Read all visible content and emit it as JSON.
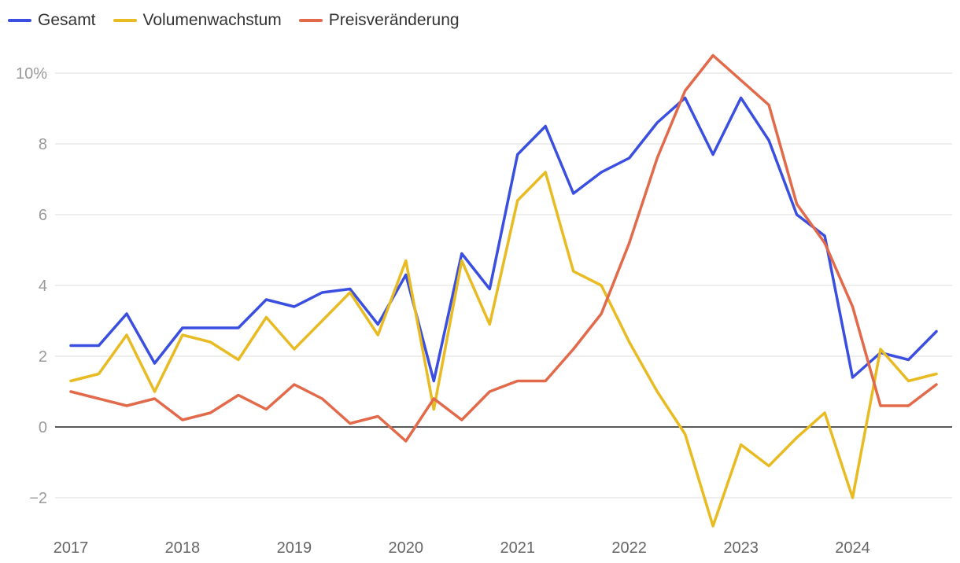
{
  "chart_data": {
    "type": "line",
    "title": "",
    "xlabel": "",
    "ylabel": "",
    "ylim": [
      -3,
      10.5
    ],
    "y_ticks": [
      -2,
      0,
      2,
      4,
      6,
      8,
      10
    ],
    "y_tick_labels": [
      "−2",
      "0",
      "2",
      "4",
      "6",
      "8",
      "10%"
    ],
    "x_range": [
      2017.0,
      2024.75
    ],
    "x_ticks": [
      2017,
      2018,
      2019,
      2020,
      2021,
      2022,
      2023,
      2024
    ],
    "x_tick_labels": [
      "2017",
      "2018",
      "2019",
      "2020",
      "2021",
      "2022",
      "2023",
      "2024"
    ],
    "x": [
      2017.0,
      2017.25,
      2017.5,
      2017.75,
      2018.0,
      2018.25,
      2018.5,
      2018.75,
      2019.0,
      2019.25,
      2019.5,
      2019.75,
      2020.0,
      2020.25,
      2020.5,
      2020.75,
      2021.0,
      2021.25,
      2021.5,
      2021.75,
      2022.0,
      2022.25,
      2022.5,
      2022.75,
      2023.0,
      2023.25,
      2023.5,
      2023.75,
      2024.0,
      2024.25,
      2024.5,
      2024.75
    ],
    "series": [
      {
        "name": "Gesamt",
        "color": "#3a4fe0",
        "values": [
          2.3,
          2.3,
          3.2,
          1.8,
          2.8,
          2.8,
          2.8,
          3.6,
          3.4,
          3.8,
          3.9,
          2.9,
          4.3,
          1.3,
          4.9,
          3.9,
          7.7,
          8.5,
          6.6,
          7.2,
          7.6,
          8.6,
          9.3,
          7.7,
          9.3,
          8.1,
          6.0,
          5.4,
          1.4,
          2.1,
          1.9,
          2.7
        ]
      },
      {
        "name": "Volumenwachstum",
        "color": "#e8bb22",
        "values": [
          1.3,
          1.5,
          2.6,
          1.0,
          2.6,
          2.4,
          1.9,
          3.1,
          2.2,
          3.0,
          3.8,
          2.6,
          4.7,
          0.5,
          4.7,
          2.9,
          6.4,
          7.2,
          4.4,
          4.0,
          2.4,
          1.0,
          -0.2,
          -2.8,
          -0.5,
          -1.1,
          -0.3,
          0.4,
          -2.0,
          2.2,
          1.3,
          1.5
        ]
      },
      {
        "name": "Preisveränderung",
        "color": "#e2694a",
        "values": [
          1.0,
          0.8,
          0.6,
          0.8,
          0.2,
          0.4,
          0.9,
          0.5,
          1.2,
          0.8,
          0.1,
          0.3,
          -0.4,
          0.8,
          0.2,
          1.0,
          1.3,
          1.3,
          2.2,
          3.2,
          5.2,
          7.6,
          9.5,
          10.5,
          9.8,
          9.1,
          6.3,
          5.2,
          3.4,
          0.6,
          0.6,
          1.2
        ]
      }
    ],
    "legend_position": "top-left",
    "grid": true,
    "zero_line": true
  }
}
